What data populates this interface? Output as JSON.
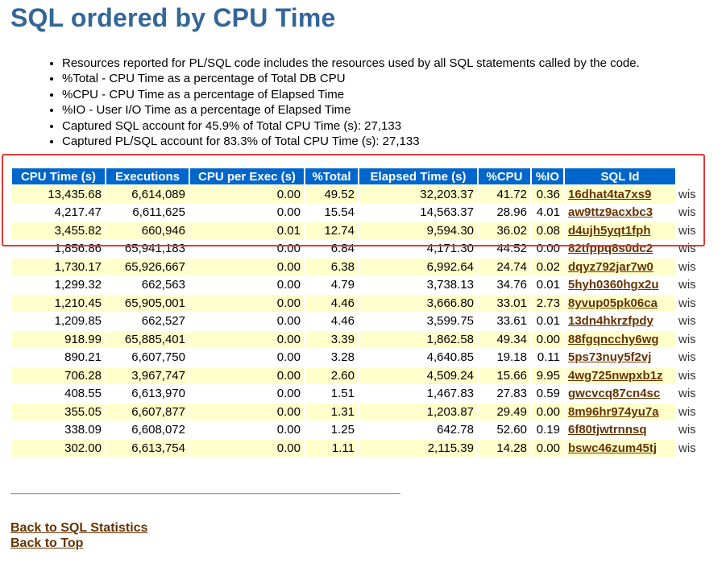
{
  "page_title": "SQL ordered by CPU Time",
  "notes": [
    "Resources reported for PL/SQL code includes the resources used by all SQL statements called by the code.",
    "%Total - CPU Time as a percentage of Total DB CPU",
    "%CPU - CPU Time as a percentage of Elapsed Time",
    "%IO - User I/O Time as a percentage of Elapsed Time",
    "Captured SQL account for 45.9% of Total CPU Time (s): 27,133",
    "Captured PL/SQL account for 83.3% of Total CPU Time (s): 27,133"
  ],
  "table": {
    "headers": [
      "CPU Time (s)",
      "Executions",
      "CPU per Exec (s)",
      "%Total",
      "Elapsed Time (s)",
      "%CPU",
      "%IO",
      "SQL Id"
    ],
    "rows": [
      {
        "cpu_time": "13,435.68",
        "executions": "6,614,089",
        "cpu_per_exec": "0.00",
        "pct_total": "49.52",
        "elapsed": "32,203.37",
        "pct_cpu": "41.72",
        "pct_io": "0.36",
        "sql_id": "16dhat4ta7xs9",
        "module": "wis"
      },
      {
        "cpu_time": "4,217.47",
        "executions": "6,611,625",
        "cpu_per_exec": "0.00",
        "pct_total": "15.54",
        "elapsed": "14,563.37",
        "pct_cpu": "28.96",
        "pct_io": "4.01",
        "sql_id": "aw9ttz9acxbc3",
        "module": "wis"
      },
      {
        "cpu_time": "3,455.82",
        "executions": "660,946",
        "cpu_per_exec": "0.01",
        "pct_total": "12.74",
        "elapsed": "9,594.30",
        "pct_cpu": "36.02",
        "pct_io": "0.08",
        "sql_id": "d4ujh5yqt1fph",
        "module": "wis"
      },
      {
        "cpu_time": "1,856.86",
        "executions": "65,941,183",
        "cpu_per_exec": "0.00",
        "pct_total": "6.84",
        "elapsed": "4,171.30",
        "pct_cpu": "44.52",
        "pct_io": "0.00",
        "sql_id": "82tfppq8s0dc2",
        "module": "wis"
      },
      {
        "cpu_time": "1,730.17",
        "executions": "65,926,667",
        "cpu_per_exec": "0.00",
        "pct_total": "6.38",
        "elapsed": "6,992.64",
        "pct_cpu": "24.74",
        "pct_io": "0.02",
        "sql_id": "dqyz792jar7w0",
        "module": "wis"
      },
      {
        "cpu_time": "1,299.32",
        "executions": "662,563",
        "cpu_per_exec": "0.00",
        "pct_total": "4.79",
        "elapsed": "3,738.13",
        "pct_cpu": "34.76",
        "pct_io": "0.01",
        "sql_id": "5hyh0360hgx2u",
        "module": "wis"
      },
      {
        "cpu_time": "1,210.45",
        "executions": "65,905,001",
        "cpu_per_exec": "0.00",
        "pct_total": "4.46",
        "elapsed": "3,666.80",
        "pct_cpu": "33.01",
        "pct_io": "2.73",
        "sql_id": "8yvup05pk06ca",
        "module": "wis"
      },
      {
        "cpu_time": "1,209.85",
        "executions": "662,527",
        "cpu_per_exec": "0.00",
        "pct_total": "4.46",
        "elapsed": "3,599.75",
        "pct_cpu": "33.61",
        "pct_io": "0.01",
        "sql_id": "13dn4hkrzfpdy",
        "module": "wis"
      },
      {
        "cpu_time": "918.99",
        "executions": "65,885,401",
        "cpu_per_exec": "0.00",
        "pct_total": "3.39",
        "elapsed": "1,862.58",
        "pct_cpu": "49.34",
        "pct_io": "0.00",
        "sql_id": "88fgqncchy6wg",
        "module": "wis"
      },
      {
        "cpu_time": "890.21",
        "executions": "6,607,750",
        "cpu_per_exec": "0.00",
        "pct_total": "3.28",
        "elapsed": "4,640.85",
        "pct_cpu": "19.18",
        "pct_io": "0.11",
        "sql_id": "5ps73nuy5f2vj",
        "module": "wis"
      },
      {
        "cpu_time": "706.28",
        "executions": "3,967,747",
        "cpu_per_exec": "0.00",
        "pct_total": "2.60",
        "elapsed": "4,509.24",
        "pct_cpu": "15.66",
        "pct_io": "9.95",
        "sql_id": "4wg725nwpxb1z",
        "module": "wis"
      },
      {
        "cpu_time": "408.55",
        "executions": "6,613,970",
        "cpu_per_exec": "0.00",
        "pct_total": "1.51",
        "elapsed": "1,467.83",
        "pct_cpu": "27.83",
        "pct_io": "0.59",
        "sql_id": "gwcvcq87cn4sc",
        "module": "wis"
      },
      {
        "cpu_time": "355.05",
        "executions": "6,607,877",
        "cpu_per_exec": "0.00",
        "pct_total": "1.31",
        "elapsed": "1,203.87",
        "pct_cpu": "29.49",
        "pct_io": "0.00",
        "sql_id": "8m96hr974yu7a",
        "module": "wis"
      },
      {
        "cpu_time": "338.09",
        "executions": "6,608,072",
        "cpu_per_exec": "0.00",
        "pct_total": "1.25",
        "elapsed": "642.78",
        "pct_cpu": "52.60",
        "pct_io": "0.19",
        "sql_id": "6f80tjwtrnnsq",
        "module": "wis"
      },
      {
        "cpu_time": "302.00",
        "executions": "6,613,754",
        "cpu_per_exec": "0.00",
        "pct_total": "1.11",
        "elapsed": "2,115.39",
        "pct_cpu": "14.28",
        "pct_io": "0.00",
        "sql_id": "bswc46zum45tj",
        "module": "wis"
      }
    ]
  },
  "links": {
    "back_to_sql_statistics": "Back to SQL Statistics",
    "back_to_top": "Back to Top"
  },
  "colors": {
    "title": "#336699",
    "header_bg": "#0066CC",
    "row_alt_bg": "#FFFFCC",
    "link": "#663300",
    "highlight_box": "#e53935"
  }
}
